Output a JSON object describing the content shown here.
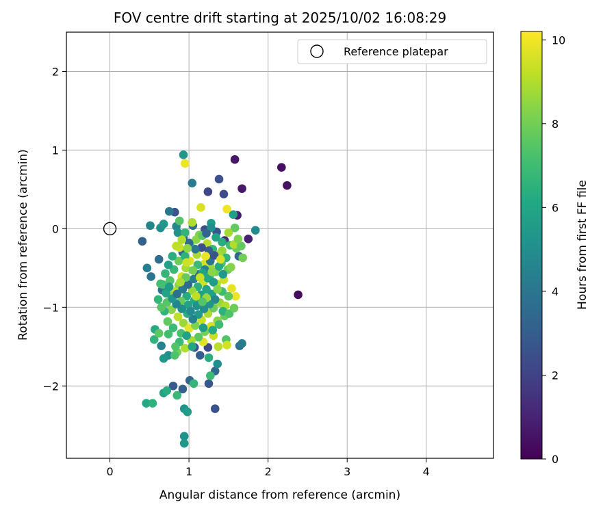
{
  "chart_data": {
    "type": "scatter",
    "title": "FOV centre drift starting at 2025/10/02 16:08:29",
    "xlabel": "Angular distance from reference (arcmin)",
    "ylabel": "Rotation from reference (arcmin)",
    "xlim": [
      -0.55,
      4.85
    ],
    "ylim": [
      -2.92,
      2.5
    ],
    "xticks": [
      0,
      1,
      2,
      3,
      4
    ],
    "xtick_labels": [
      "0",
      "1",
      "2",
      "3",
      "4"
    ],
    "yticks": [
      -2,
      -1,
      0,
      1,
      2
    ],
    "ytick_labels": [
      "−2",
      "−1",
      "0",
      "1",
      "2"
    ],
    "grid": true,
    "legend": {
      "position": "top-right",
      "entries": [
        {
          "label": "Reference platepar",
          "marker": "open-circle"
        }
      ]
    },
    "reference_point": {
      "x": 0,
      "y": 0
    },
    "colorbar": {
      "label": "Hours from first FF file",
      "range": [
        0,
        10.2
      ],
      "ticks": [
        0,
        2,
        4,
        6,
        8,
        10
      ],
      "tick_labels": [
        "0",
        "2",
        "4",
        "6",
        "8",
        "10"
      ],
      "colormap": "viridis"
    },
    "series": [
      {
        "name": "FOV centre drift",
        "color_by": "hours",
        "points": [
          [
            1.58,
            0.88,
            0.6
          ],
          [
            2.17,
            0.78,
            0.4
          ],
          [
            2.24,
            0.55,
            0.5
          ],
          [
            1.67,
            0.51,
            0.7
          ],
          [
            1.61,
            0.17,
            0.8
          ],
          [
            1.75,
            -0.13,
            0.9
          ],
          [
            2.38,
            -0.84,
            0.3
          ],
          [
            1.45,
            -0.15,
            1.1
          ],
          [
            1.38,
            0.63,
            2.5
          ],
          [
            1.44,
            0.44,
            2.3
          ],
          [
            1.24,
            0.47,
            2.1
          ],
          [
            0.82,
            0.21,
            2.7
          ],
          [
            0.41,
            -0.16,
            3.2
          ],
          [
            1.33,
            -2.29,
            2.6
          ],
          [
            1.25,
            -1.97,
            2.8
          ],
          [
            0.92,
            -2.04,
            3.1
          ],
          [
            0.8,
            -2.0,
            2.9
          ],
          [
            1.01,
            -1.93,
            3.4
          ],
          [
            1.14,
            -1.61,
            3.0
          ],
          [
            1.07,
            -1.51,
            2.4
          ],
          [
            1.24,
            -1.51,
            2.2
          ],
          [
            1.33,
            -1.81,
            3.5
          ],
          [
            1.64,
            -1.49,
            3.8
          ],
          [
            1.67,
            -1.46,
            4.2
          ],
          [
            0.62,
            -0.39,
            3.6
          ],
          [
            0.66,
            -0.78,
            4.0
          ],
          [
            0.92,
            -0.3,
            3.3
          ],
          [
            0.93,
            0.94,
            5.3
          ],
          [
            1.04,
            0.58,
            4.3
          ],
          [
            0.75,
            0.22,
            4.1
          ],
          [
            0.51,
            0.04,
            4.6
          ],
          [
            0.64,
            0.01,
            5.0
          ],
          [
            0.68,
            0.06,
            5.4
          ],
          [
            0.47,
            -0.5,
            4.4
          ],
          [
            0.52,
            -0.61,
            3.9
          ],
          [
            1.84,
            -0.02,
            4.8
          ],
          [
            1.56,
            0.18,
            5.7
          ],
          [
            1.28,
            0.07,
            5.5
          ],
          [
            1.05,
            0.04,
            3.7
          ],
          [
            0.84,
            0.03,
            4.7
          ],
          [
            1.2,
            -0.01,
            2.5
          ],
          [
            1.35,
            -0.04,
            2.7
          ],
          [
            1.63,
            -0.35,
            3.4
          ],
          [
            0.94,
            -2.29,
            5.2
          ],
          [
            0.98,
            -2.33,
            5.6
          ],
          [
            0.94,
            -2.64,
            5.1
          ],
          [
            0.94,
            -2.73,
            5.4
          ],
          [
            0.46,
            -2.22,
            6.1
          ],
          [
            0.54,
            -2.22,
            6.5
          ],
          [
            0.68,
            -2.09,
            5.8
          ],
          [
            0.72,
            -2.06,
            6.3
          ],
          [
            0.85,
            -2.12,
            6.8
          ],
          [
            0.74,
            -1.61,
            4.9
          ],
          [
            0.68,
            -1.65,
            5.3
          ],
          [
            0.65,
            -1.49,
            4.5
          ],
          [
            1.36,
            -1.72,
            5.0
          ],
          [
            1.27,
            -1.87,
            6.9
          ],
          [
            1.06,
            -1.97,
            6.7
          ],
          [
            0.56,
            -1.41,
            6.6
          ],
          [
            0.57,
            -1.28,
            6.2
          ],
          [
            0.74,
            -1.34,
            7.1
          ],
          [
            1.25,
            -1.64,
            6.4
          ],
          [
            1.47,
            -1.41,
            7.4
          ],
          [
            0.95,
            0.83,
            9.9
          ],
          [
            1.15,
            0.27,
            9.6
          ],
          [
            1.48,
            0.25,
            10.0
          ],
          [
            1.58,
            0.01,
            7.7
          ],
          [
            1.68,
            -0.37,
            8.0
          ],
          [
            1.6,
            -0.25,
            7.9
          ],
          [
            1.54,
            -0.76,
            9.8
          ],
          [
            1.59,
            -0.86,
            9.9
          ],
          [
            1.5,
            -0.86,
            7.6
          ],
          [
            1.48,
            -1.48,
            9.5
          ],
          [
            1.37,
            -1.5,
            9.1
          ],
          [
            1.31,
            -1.36,
            9.3
          ],
          [
            1.18,
            -1.44,
            9.7
          ],
          [
            0.95,
            -1.52,
            9.0
          ],
          [
            0.85,
            -1.57,
            8.1
          ],
          [
            0.82,
            -1.61,
            7.3
          ],
          [
            0.88,
            -0.24,
            9.4
          ],
          [
            0.84,
            -0.22,
            9.2
          ],
          [
            1.04,
            0.08,
            9.0
          ],
          [
            1.13,
            -0.08,
            8.2
          ],
          [
            1.42,
            -0.28,
            8.6
          ],
          [
            1.49,
            -0.52,
            7.8
          ],
          [
            1.44,
            -0.65,
            9.4
          ],
          [
            1.35,
            -0.7,
            9.0
          ],
          [
            1.27,
            -0.48,
            8.7
          ],
          [
            1.19,
            -0.45,
            9.5
          ],
          [
            1.1,
            -0.33,
            8.9
          ],
          [
            1.01,
            -0.41,
            9.7
          ],
          [
            0.96,
            -0.5,
            8.8
          ],
          [
            0.91,
            -0.61,
            9.6
          ],
          [
            0.87,
            -0.72,
            8.3
          ],
          [
            0.82,
            -0.8,
            9.1
          ],
          [
            0.77,
            -0.85,
            8.5
          ],
          [
            0.72,
            -0.94,
            7.5
          ],
          [
            0.78,
            -1.03,
            8.4
          ],
          [
            0.86,
            -1.12,
            9.2
          ],
          [
            0.93,
            -1.2,
            8.7
          ],
          [
            1.0,
            -1.27,
            9.8
          ],
          [
            1.08,
            -1.23,
            8.2
          ],
          [
            1.16,
            -1.16,
            9.3
          ],
          [
            1.24,
            -1.08,
            8.9
          ],
          [
            1.31,
            -1.01,
            7.9
          ],
          [
            1.39,
            -0.94,
            8.6
          ],
          [
            1.46,
            -0.98,
            9.0
          ],
          [
            1.45,
            -1.11,
            7.8
          ],
          [
            1.36,
            -1.17,
            8.4
          ],
          [
            1.28,
            -1.24,
            9.6
          ],
          [
            1.2,
            -1.31,
            8.1
          ],
          [
            1.12,
            -1.38,
            7.6
          ],
          [
            1.03,
            -1.42,
            8.8
          ],
          [
            0.9,
            -1.33,
            7.2
          ],
          [
            0.8,
            -1.26,
            6.9
          ],
          [
            0.73,
            -1.18,
            7.7
          ],
          [
            0.69,
            -1.05,
            6.6
          ],
          [
            0.76,
            -0.66,
            7.4
          ],
          [
            0.81,
            -0.52,
            6.8
          ],
          [
            0.87,
            -0.41,
            7.9
          ],
          [
            0.95,
            -0.35,
            6.5
          ],
          [
            1.02,
            -0.22,
            7.1
          ],
          [
            1.09,
            -0.14,
            8.4
          ],
          [
            1.17,
            -0.09,
            7.6
          ],
          [
            1.23,
            -0.19,
            9.1
          ],
          [
            1.3,
            -0.26,
            6.7
          ],
          [
            1.37,
            -0.33,
            8.8
          ],
          [
            1.41,
            -0.44,
            7.3
          ],
          [
            1.34,
            -0.55,
            8.1
          ],
          [
            1.26,
            -0.61,
            7.0
          ],
          [
            1.18,
            -0.68,
            9.4
          ],
          [
            1.11,
            -0.74,
            6.4
          ],
          [
            1.04,
            -0.79,
            8.6
          ],
          [
            0.97,
            -0.86,
            6.2
          ],
          [
            0.9,
            -0.92,
            7.8
          ],
          [
            0.99,
            -0.97,
            5.9
          ],
          [
            1.07,
            -0.91,
            6.1
          ],
          [
            1.15,
            -0.84,
            5.7
          ],
          [
            1.22,
            -0.77,
            6.0
          ],
          [
            1.29,
            -0.83,
            5.8
          ],
          [
            1.33,
            -0.9,
            4.7
          ],
          [
            1.26,
            -0.96,
            5.2
          ],
          [
            1.19,
            -1.02,
            4.9
          ],
          [
            1.12,
            -1.09,
            5.5
          ],
          [
            1.05,
            -1.15,
            4.4
          ],
          [
            0.98,
            -1.08,
            6.3
          ],
          [
            0.91,
            -1.02,
            5.0
          ],
          [
            0.84,
            -0.96,
            4.6
          ],
          [
            0.79,
            -0.89,
            5.3
          ],
          [
            0.85,
            -0.83,
            3.8
          ],
          [
            0.92,
            -0.77,
            4.1
          ],
          [
            0.99,
            -0.71,
            3.5
          ],
          [
            1.06,
            -0.64,
            4.3
          ],
          [
            1.13,
            -0.58,
            3.2
          ],
          [
            1.2,
            -0.52,
            4.5
          ],
          [
            1.27,
            -0.41,
            3.9
          ],
          [
            1.32,
            -0.34,
            2.6
          ],
          [
            1.25,
            -0.28,
            3.1
          ],
          [
            1.16,
            -0.24,
            2.4
          ],
          [
            1.08,
            -0.26,
            4.0
          ],
          [
            1.0,
            -0.18,
            3.6
          ],
          [
            0.93,
            -0.11,
            2.9
          ],
          [
            0.86,
            -0.05,
            5.1
          ],
          [
            1.11,
            -0.46,
            6.9
          ],
          [
            1.17,
            -0.56,
            5.9
          ],
          [
            1.24,
            -0.63,
            6.1
          ],
          [
            1.31,
            -0.68,
            5.6
          ],
          [
            0.79,
            -0.35,
            6.4
          ],
          [
            0.74,
            -0.46,
            5.8
          ],
          [
            0.7,
            -0.57,
            6.7
          ],
          [
            0.67,
            -0.71,
            7.2
          ],
          [
            0.71,
            -0.82,
            6.0
          ],
          [
            0.75,
            -0.74,
            5.5
          ],
          [
            1.38,
            -0.48,
            6.2
          ],
          [
            1.43,
            -0.58,
            5.4
          ],
          [
            1.47,
            -0.37,
            6.6
          ],
          [
            1.52,
            -0.21,
            7.0
          ],
          [
            1.42,
            -0.17,
            6.3
          ],
          [
            1.34,
            -0.11,
            5.9
          ],
          [
            1.28,
            0.01,
            4.9
          ],
          [
            1.22,
            -0.06,
            3.3
          ],
          [
            0.97,
            -1.36,
            5.8
          ],
          [
            1.04,
            -1.5,
            6.0
          ],
          [
            1.18,
            -1.26,
            5.6
          ],
          [
            1.3,
            -1.29,
            6.2
          ],
          [
            1.38,
            -1.22,
            7.0
          ],
          [
            1.43,
            -1.05,
            6.5
          ],
          [
            1.51,
            -1.08,
            7.3
          ],
          [
            1.57,
            -1.01,
            7.9
          ],
          [
            1.02,
            -1.05,
            4.8
          ],
          [
            1.1,
            -0.98,
            5.1
          ],
          [
            0.88,
            -1.44,
            6.9
          ],
          [
            0.83,
            -1.5,
            7.4
          ],
          [
            0.95,
            -0.05,
            6.6
          ],
          [
            0.88,
            0.1,
            7.5
          ],
          [
            0.64,
            -0.7,
            7.1
          ],
          [
            0.61,
            -0.9,
            6.7
          ],
          [
            0.65,
            -1.0,
            7.5
          ],
          [
            0.62,
            -1.33,
            7.6
          ],
          [
            1.42,
            -0.8,
            7.0
          ],
          [
            1.36,
            -0.77,
            8.3
          ],
          [
            1.22,
            -0.88,
            8.7
          ],
          [
            1.17,
            -0.93,
            7.4
          ],
          [
            1.09,
            -0.86,
            9.2
          ],
          [
            0.96,
            -0.62,
            7.8
          ],
          [
            0.89,
            -0.68,
            8.9
          ],
          [
            1.05,
            -0.53,
            8.1
          ],
          [
            1.14,
            -0.62,
            9.3
          ],
          [
            1.29,
            -0.55,
            8.4
          ],
          [
            1.4,
            -0.39,
            9.6
          ],
          [
            1.53,
            -0.49,
            8.3
          ],
          [
            1.57,
            -0.2,
            9.0
          ],
          [
            1.66,
            -0.22,
            7.7
          ],
          [
            1.62,
            -0.13,
            8.2
          ],
          [
            1.5,
            -0.05,
            8.8
          ],
          [
            0.98,
            -0.25,
            8.5
          ],
          [
            0.91,
            -0.14,
            9.0
          ],
          [
            0.97,
            -0.43,
            9.4
          ],
          [
            1.21,
            -0.35,
            9.9
          ]
        ]
      }
    ]
  }
}
